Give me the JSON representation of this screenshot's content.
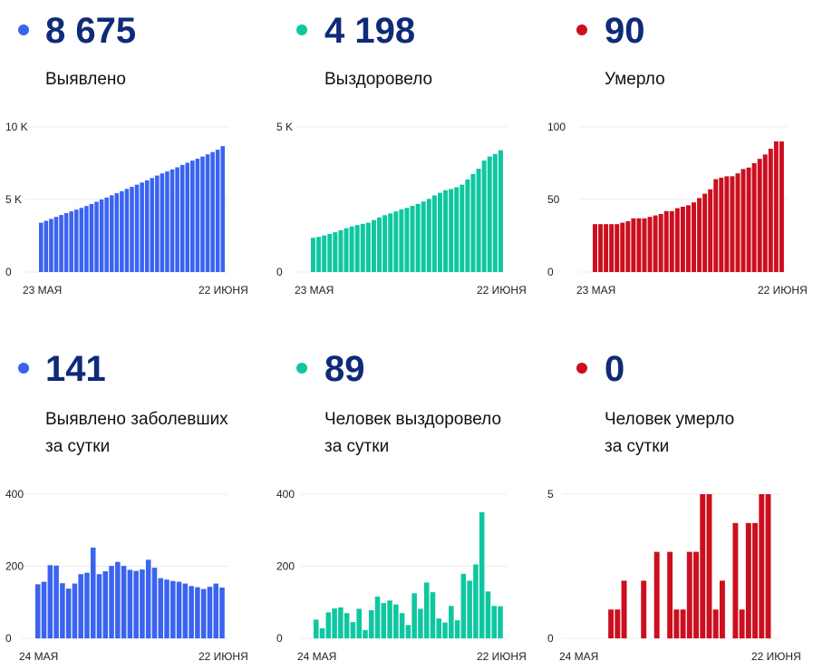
{
  "colors": {
    "blue": "#3a63f0",
    "green": "#0ec7a0",
    "red": "#cc0f1f",
    "value_text": "#0f2a78"
  },
  "panels": [
    {
      "value": "8 675",
      "label": "Выявлено",
      "color": "#3a63f0",
      "chart_data": {
        "type": "bar",
        "title": "",
        "xlabel": "",
        "ylabel": "",
        "ylim": [
          0,
          10000
        ],
        "y_ticks": [
          "0",
          "5 K",
          "10 K"
        ],
        "y_tick_values": [
          0,
          5000,
          10000
        ],
        "x_tick_labels": [
          "23 МАЯ",
          "22 ИЮНЯ"
        ],
        "grid": true,
        "values": [
          3400,
          3530,
          3660,
          3800,
          3930,
          4060,
          4180,
          4300,
          4420,
          4550,
          4690,
          4840,
          5000,
          5130,
          5290,
          5430,
          5570,
          5730,
          5870,
          6020,
          6170,
          6320,
          6480,
          6650,
          6800,
          6930,
          7070,
          7220,
          7380,
          7530,
          7680,
          7810,
          7960,
          8110,
          8270,
          8430,
          8675
        ]
      }
    },
    {
      "value": "4 198",
      "label": "Выздоровело",
      "color": "#0ec7a0",
      "chart_data": {
        "type": "bar",
        "title": "",
        "xlabel": "",
        "ylabel": "",
        "ylim": [
          0,
          5000
        ],
        "y_ticks": [
          "0",
          "5 K"
        ],
        "y_tick_values": [
          0,
          5000
        ],
        "x_tick_labels": [
          "23 МАЯ",
          "22 ИЮНЯ"
        ],
        "grid": true,
        "values": [
          1180,
          1210,
          1260,
          1310,
          1370,
          1440,
          1510,
          1570,
          1620,
          1660,
          1700,
          1790,
          1880,
          1960,
          2020,
          2090,
          2160,
          2210,
          2280,
          2350,
          2430,
          2520,
          2640,
          2730,
          2820,
          2860,
          2920,
          3010,
          3190,
          3380,
          3560,
          3840,
          3980,
          4070,
          4198
        ]
      }
    },
    {
      "value": "90",
      "label": "Умерло",
      "color": "#cc0f1f",
      "chart_data": {
        "type": "bar",
        "title": "",
        "xlabel": "",
        "ylabel": "",
        "ylim": [
          0,
          100
        ],
        "y_ticks": [
          "0",
          "50",
          "100"
        ],
        "y_tick_values": [
          0,
          50,
          100
        ],
        "x_tick_labels": [
          "23 МАЯ",
          "22 ИЮНЯ"
        ],
        "grid": true,
        "values": [
          33,
          33,
          33,
          33,
          33,
          34,
          35,
          37,
          37,
          37,
          38,
          39,
          40,
          42,
          42,
          44,
          45,
          46,
          48,
          51,
          54,
          57,
          64,
          65,
          66,
          66,
          68,
          71,
          72,
          75,
          78,
          81,
          85,
          90,
          90
        ]
      }
    },
    {
      "value": "141",
      "label": "Выявлено заболевших\nза сутки",
      "color": "#3a63f0",
      "chart_data": {
        "type": "bar",
        "title": "",
        "xlabel": "",
        "ylabel": "",
        "ylim": [
          0,
          400
        ],
        "y_ticks": [
          "0",
          "200",
          "400"
        ],
        "y_tick_values": [
          0,
          200,
          400
        ],
        "x_tick_labels": [
          "24 МАЯ",
          "22 ИЮНЯ"
        ],
        "grid": true,
        "values": [
          150,
          157,
          203,
          202,
          153,
          138,
          152,
          178,
          182,
          252,
          178,
          186,
          201,
          212,
          201,
          190,
          187,
          191,
          218,
          196,
          167,
          163,
          159,
          157,
          152,
          145,
          142,
          137,
          143,
          152,
          141
        ]
      }
    },
    {
      "value": "89",
      "label": "Человек выздоровело\nза сутки",
      "color": "#0ec7a0",
      "chart_data": {
        "type": "bar",
        "title": "",
        "xlabel": "",
        "ylabel": "",
        "ylim": [
          0,
          400
        ],
        "y_ticks": [
          "0",
          "200",
          "400"
        ],
        "y_tick_values": [
          0,
          200,
          400
        ],
        "x_tick_labels": [
          "24 МАЯ",
          "22 ИЮНЯ"
        ],
        "grid": true,
        "values": [
          52,
          28,
          72,
          83,
          86,
          70,
          45,
          82,
          23,
          78,
          116,
          98,
          105,
          94,
          70,
          37,
          125,
          82,
          155,
          128,
          55,
          44,
          90,
          50,
          179,
          160,
          205,
          350,
          130,
          90,
          89
        ]
      }
    },
    {
      "value": "0",
      "label": "Человек умерло\nза сутки",
      "color": "#cc0f1f",
      "chart_data": {
        "type": "bar",
        "title": "",
        "xlabel": "",
        "ylabel": "",
        "ylim": [
          0,
          5
        ],
        "y_ticks": [
          "0",
          "5"
        ],
        "y_tick_values": [
          0,
          5
        ],
        "x_tick_labels": [
          "24 МАЯ",
          "22 ИЮНЯ"
        ],
        "grid": true,
        "values": [
          0,
          0,
          0,
          0,
          0,
          1,
          1,
          2,
          0,
          0,
          2,
          0,
          3,
          0,
          3,
          1,
          1,
          3,
          3,
          5,
          5,
          1,
          2,
          0,
          4,
          1,
          4,
          4,
          5,
          5,
          0
        ]
      }
    }
  ]
}
